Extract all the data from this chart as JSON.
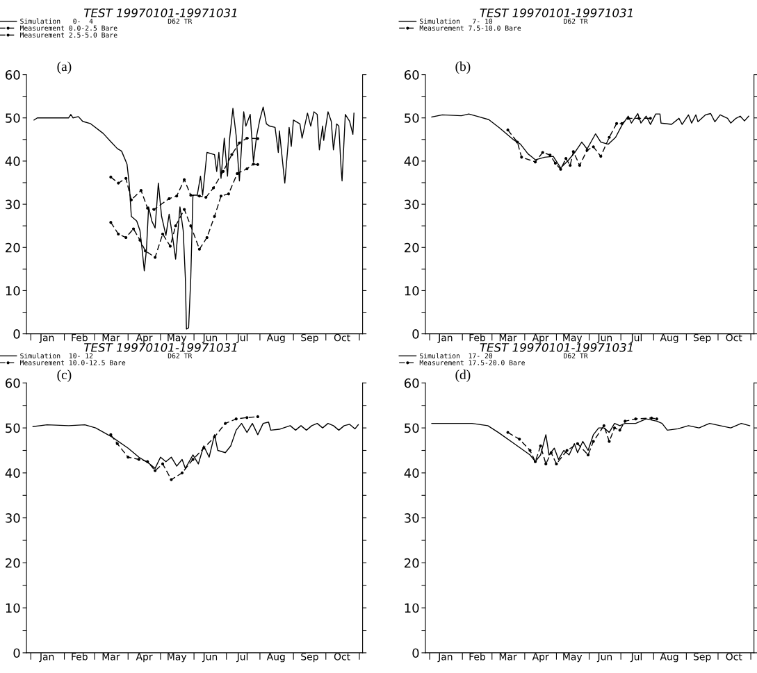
{
  "chart_data": [
    {
      "type": "line",
      "title": "TEST 19970101-19971031",
      "annotations": [
        "(a)",
        "D62 TR"
      ],
      "legend": "top left",
      "grid": false,
      "xlim": [
        "1996-12-28",
        "1997-11-04"
      ],
      "ylim": [
        0,
        60
      ],
      "yticks": [
        0,
        {
          "value": 5,
          "label": null
        },
        10,
        {
          "value": 15,
          "label": null
        },
        20,
        {
          "value": 25,
          "label": null
        },
        30,
        {
          "value": 35,
          "label": null
        },
        40,
        {
          "value": 45,
          "label": null
        },
        50,
        {
          "value": 55,
          "label": null
        },
        60
      ],
      "xticks": [
        {
          "value": "1997-01-01",
          "label": null
        },
        {
          "value": "1997-01-16",
          "label": "Jan"
        },
        {
          "value": "1997-02-01",
          "label": null
        },
        {
          "value": "1997-02-15",
          "label": "Feb"
        },
        {
          "value": "1997-03-01",
          "label": null
        },
        {
          "value": "1997-03-16",
          "label": "Mar"
        },
        {
          "value": "1997-04-01",
          "label": null
        },
        {
          "value": "1997-04-16",
          "label": "Apr"
        },
        {
          "value": "1997-05-01",
          "label": null
        },
        {
          "value": "1997-05-16",
          "label": "May"
        },
        {
          "value": "1997-06-01",
          "label": null
        },
        {
          "value": "1997-06-16",
          "label": "Jun"
        },
        {
          "value": "1997-07-01",
          "label": null
        },
        {
          "value": "1997-07-16",
          "label": "Jul"
        },
        {
          "value": "1997-08-01",
          "label": null
        },
        {
          "value": "1997-08-16",
          "label": "Aug"
        },
        {
          "value": "1997-09-01",
          "label": null
        },
        {
          "value": "1997-09-16",
          "label": "Sep"
        },
        {
          "value": "1997-10-01",
          "label": null
        },
        {
          "value": "1997-10-16",
          "label": "Oct"
        },
        {
          "value": "1997-11-01",
          "label": null
        }
      ],
      "series": [
        {
          "name": "Simulation   0-  4",
          "color": "#000000",
          "line_style": "solid",
          "marker": "none",
          "x": [
            "1997-01-04",
            "1997-01-07",
            "1997-02-05",
            "1997-02-07",
            "1997-02-09",
            "1997-02-14",
            "1997-02-18",
            "1997-02-25",
            "1997-03-09",
            "1997-03-16",
            "1997-03-22",
            "1997-03-26",
            "1997-03-31",
            "1997-04-02",
            "1997-04-04",
            "1997-04-09",
            "1997-04-12",
            "1997-04-14",
            "1997-04-16",
            "1997-04-18",
            "1997-04-20",
            "1997-04-23",
            "1997-04-26",
            "1997-04-29",
            "1997-05-02",
            "1997-05-06",
            "1997-05-09",
            "1997-05-12",
            "1997-05-15",
            "1997-05-19",
            "1997-05-22",
            "1997-05-24",
            "1997-05-25",
            "1997-05-27",
            "1997-05-29",
            "1997-05-31",
            "1997-06-04",
            "1997-06-07",
            "1997-06-09",
            "1997-06-13",
            "1997-06-20",
            "1997-06-22",
            "1997-06-24",
            "1997-06-26",
            "1997-06-29",
            "1997-07-02",
            "1997-07-04",
            "1997-07-07",
            "1997-07-10",
            "1997-07-13",
            "1997-07-17",
            "1997-07-19",
            "1997-07-23",
            "1997-07-26",
            "1997-07-29",
            "1997-08-01",
            "1997-08-04",
            "1997-08-07",
            "1997-08-10",
            "1997-08-15",
            "1997-08-18",
            "1997-08-19",
            "1997-08-24",
            "1997-08-27",
            "1997-08-28",
            "1997-08-30",
            "1997-09-01",
            "1997-09-07",
            "1997-09-09",
            "1997-09-14",
            "1997-09-17",
            "1997-09-20",
            "1997-09-23",
            "1997-09-25",
            "1997-09-28",
            "1997-09-29",
            "1997-10-03",
            "1997-10-06",
            "1997-10-08",
            "1997-10-11",
            "1997-10-13",
            "1997-10-15",
            "1997-10-16",
            "1997-10-19",
            "1997-10-23",
            "1997-10-26",
            "1997-10-27"
          ],
          "values": [
            49.5,
            50,
            50,
            50.8,
            50,
            50.3,
            49.2,
            48.7,
            46.4,
            44.5,
            42.9,
            42.3,
            39.3,
            34.9,
            27.2,
            26.1,
            23.9,
            19.5,
            14.6,
            19.5,
            29.4,
            26.1,
            24.5,
            34.9,
            27.2,
            22.8,
            27.7,
            22.8,
            17.3,
            29.4,
            23.9,
            12.9,
            1.1,
            1.4,
            12.9,
            32.1,
            32.1,
            36.5,
            32.1,
            42,
            41.5,
            37.6,
            42,
            36,
            45.3,
            36.5,
            45.3,
            52.2,
            45.9,
            35.4,
            51.4,
            48.1,
            50.8,
            39.8,
            45.9,
            49.7,
            52.5,
            48.6,
            48.1,
            47.8,
            42,
            47,
            34.9,
            43.7,
            47.8,
            43.4,
            49.5,
            48.6,
            45.3,
            51.1,
            48.1,
            51.4,
            50.8,
            42.6,
            48.1,
            44.8,
            51.4,
            49.2,
            42.6,
            48.6,
            48.1,
            38.7,
            35.4,
            50.8,
            49.2,
            46.2,
            51.1
          ]
        },
        {
          "name": "Measurement 0.0-2.5 Bare",
          "color": "#000000",
          "line_style": "dashed",
          "marker": "circle",
          "x": [
            "1997-03-16",
            "1997-03-23",
            "1997-03-30",
            "1997-04-06",
            "1997-04-12",
            "1997-04-17",
            "1997-04-26",
            "1997-05-03",
            "1997-05-10",
            "1997-05-15",
            "1997-05-23",
            "1997-05-29",
            "1997-06-06",
            "1997-06-13",
            "1997-06-20",
            "1997-06-26",
            "1997-07-03",
            "1997-07-11",
            "1997-07-20",
            "1997-07-26",
            "1997-07-30"
          ],
          "values": [
            25.8,
            23.1,
            22.3,
            24.3,
            21.7,
            19.2,
            17.7,
            23.1,
            20.3,
            25,
            28.8,
            25,
            19.6,
            22.3,
            27.2,
            31.9,
            32.4,
            37.1,
            38.2,
            39.3,
            39.2
          ]
        },
        {
          "name": "Measurement 2.5-5.0 Bare",
          "color": "#000000",
          "line_style": "dashed",
          "marker": "circle",
          "x": [
            "1997-03-16",
            "1997-03-23",
            "1997-03-30",
            "1997-04-04",
            "1997-04-13",
            "1997-04-19",
            "1997-04-25",
            "1997-05-09",
            "1997-05-16",
            "1997-05-23",
            "1997-05-29",
            "1997-06-06",
            "1997-06-12",
            "1997-06-19",
            "1997-06-28",
            "1997-07-06",
            "1997-07-13",
            "1997-07-20",
            "1997-07-30"
          ],
          "values": [
            36.3,
            34.9,
            36,
            31,
            33.2,
            29.1,
            28.8,
            31.3,
            31.9,
            35.7,
            32.1,
            31.9,
            31.6,
            33.8,
            37.6,
            41.5,
            44.2,
            45.3,
            45.2
          ]
        }
      ]
    },
    {
      "type": "line",
      "title": "TEST 19970101-19971031",
      "annotations": [
        "(b)",
        "D62 TR"
      ],
      "legend": "top left",
      "grid": false,
      "xlim": [
        "1996-12-28",
        "1997-11-04"
      ],
      "ylim": [
        0,
        60
      ],
      "yticks": [
        0,
        {
          "value": 5,
          "label": null
        },
        10,
        {
          "value": 15,
          "label": null
        },
        20,
        {
          "value": 25,
          "label": null
        },
        30,
        {
          "value": 35,
          "label": null
        },
        40,
        {
          "value": 45,
          "label": null
        },
        50,
        {
          "value": 55,
          "label": null
        },
        60
      ],
      "xticks": [
        {
          "value": "1997-01-01",
          "label": null
        },
        {
          "value": "1997-01-16",
          "label": "Jan"
        },
        {
          "value": "1997-02-01",
          "label": null
        },
        {
          "value": "1997-02-15",
          "label": "Feb"
        },
        {
          "value": "1997-03-01",
          "label": null
        },
        {
          "value": "1997-03-16",
          "label": "Mar"
        },
        {
          "value": "1997-04-01",
          "label": null
        },
        {
          "value": "1997-04-16",
          "label": "Apr"
        },
        {
          "value": "1997-05-01",
          "label": null
        },
        {
          "value": "1997-05-16",
          "label": "May"
        },
        {
          "value": "1997-06-01",
          "label": null
        },
        {
          "value": "1997-06-16",
          "label": "Jun"
        },
        {
          "value": "1997-07-01",
          "label": null
        },
        {
          "value": "1997-07-16",
          "label": "Jul"
        },
        {
          "value": "1997-08-01",
          "label": null
        },
        {
          "value": "1997-08-16",
          "label": "Aug"
        },
        {
          "value": "1997-09-01",
          "label": null
        },
        {
          "value": "1997-09-16",
          "label": "Sep"
        },
        {
          "value": "1997-10-01",
          "label": null
        },
        {
          "value": "1997-10-16",
          "label": "Oct"
        },
        {
          "value": "1997-11-01",
          "label": null
        }
      ],
      "series": [
        {
          "name": "Simulation   7- 10",
          "color": "#000000",
          "line_style": "solid",
          "marker": "none",
          "x": [
            "1997-01-03",
            "1997-01-13",
            "1997-01-31",
            "1997-02-07",
            "1997-02-16",
            "1997-02-26",
            "1997-03-08",
            "1997-03-21",
            "1997-03-28",
            "1997-04-04",
            "1997-04-11",
            "1997-04-20",
            "1997-04-28",
            "1997-05-05",
            "1997-05-12",
            "1997-05-19",
            "1997-05-25",
            "1997-05-30",
            "1997-06-07",
            "1997-06-12",
            "1997-06-19",
            "1997-06-26",
            "1997-07-02",
            "1997-07-08",
            "1997-07-11",
            "1997-07-17",
            "1997-07-20",
            "1997-07-25",
            "1997-07-29",
            "1997-08-03",
            "1997-08-07",
            "1997-08-08",
            "1997-08-18",
            "1997-08-25",
            "1997-08-28",
            "1997-09-03",
            "1997-09-06",
            "1997-09-10",
            "1997-09-12",
            "1997-09-19",
            "1997-09-24",
            "1997-09-28",
            "1997-10-03",
            "1997-10-10",
            "1997-10-13",
            "1997-10-18",
            "1997-10-22",
            "1997-10-26",
            "1997-10-30"
          ],
          "values": [
            50.2,
            50.7,
            50.5,
            50.9,
            50.3,
            49.6,
            47.7,
            45,
            43.9,
            41.7,
            40.3,
            40.9,
            41.1,
            38.4,
            40.1,
            42.2,
            44.4,
            42.8,
            46.3,
            44.4,
            43.9,
            45.5,
            48.3,
            50.4,
            48.8,
            51,
            48.8,
            50.4,
            48.5,
            50.9,
            50.9,
            48.8,
            48.5,
            49.9,
            48.5,
            50.7,
            48.8,
            50.7,
            49.1,
            50.7,
            51,
            49.1,
            50.7,
            49.9,
            48.8,
            49.9,
            50.4,
            49.3,
            50.4
          ]
        },
        {
          "name": "Measurement 7.5-10.0 Bare",
          "color": "#000000",
          "line_style": "dashed",
          "marker": "circle",
          "x": [
            "1997-03-16",
            "1997-03-25",
            "1997-03-29",
            "1997-04-11",
            "1997-04-18",
            "1997-04-25",
            "1997-04-30",
            "1997-05-05",
            "1997-05-10",
            "1997-05-14",
            "1997-05-17",
            "1997-05-23",
            "1997-05-30",
            "1997-06-05",
            "1997-06-12",
            "1997-06-20",
            "1997-06-27",
            "1997-07-02",
            "1997-07-08",
            "1997-07-18",
            "1997-07-29"
          ],
          "values": [
            47.2,
            44.4,
            40.9,
            39.8,
            42,
            41.4,
            39.5,
            38.1,
            40.6,
            39,
            42.2,
            39,
            42.5,
            43.3,
            41.1,
            45.5,
            48.7,
            48.7,
            49.9,
            49.9,
            49.9
          ]
        }
      ]
    },
    {
      "type": "line",
      "title": "TEST 19970101-19971031",
      "annotations": [
        "(c)",
        "D62 TR"
      ],
      "legend": "top left",
      "grid": false,
      "xlim": [
        "1996-12-28",
        "1997-11-04"
      ],
      "ylim": [
        0,
        60
      ],
      "yticks": [
        0,
        {
          "value": 5,
          "label": null
        },
        10,
        {
          "value": 15,
          "label": null
        },
        20,
        {
          "value": 25,
          "label": null
        },
        30,
        {
          "value": 35,
          "label": null
        },
        40,
        {
          "value": 45,
          "label": null
        },
        50,
        {
          "value": 55,
          "label": null
        },
        60
      ],
      "xticks": [
        {
          "value": "1997-01-01",
          "label": null
        },
        {
          "value": "1997-01-16",
          "label": "Jan"
        },
        {
          "value": "1997-02-01",
          "label": null
        },
        {
          "value": "1997-02-15",
          "label": "Feb"
        },
        {
          "value": "1997-03-01",
          "label": null
        },
        {
          "value": "1997-03-16",
          "label": "Mar"
        },
        {
          "value": "1997-04-01",
          "label": null
        },
        {
          "value": "1997-04-16",
          "label": "Apr"
        },
        {
          "value": "1997-05-01",
          "label": null
        },
        {
          "value": "1997-05-16",
          "label": "May"
        },
        {
          "value": "1997-06-01",
          "label": null
        },
        {
          "value": "1997-06-16",
          "label": "Jun"
        },
        {
          "value": "1997-07-01",
          "label": null
        },
        {
          "value": "1997-07-16",
          "label": "Jul"
        },
        {
          "value": "1997-08-01",
          "label": null
        },
        {
          "value": "1997-08-16",
          "label": "Aug"
        },
        {
          "value": "1997-09-01",
          "label": null
        },
        {
          "value": "1997-09-16",
          "label": "Sep"
        },
        {
          "value": "1997-10-01",
          "label": null
        },
        {
          "value": "1997-10-16",
          "label": "Oct"
        },
        {
          "value": "1997-11-01",
          "label": null
        }
      ],
      "series": [
        {
          "name": "Simulation  10- 12",
          "color": "#000000",
          "line_style": "solid",
          "marker": "none",
          "x": [
            "1997-01-03",
            "1997-01-16",
            "1997-02-05",
            "1997-02-20",
            "1997-03-02",
            "1997-03-17",
            "1997-04-01",
            "1997-04-11",
            "1997-04-21",
            "1997-04-26",
            "1997-05-01",
            "1997-05-06",
            "1997-05-11",
            "1997-05-16",
            "1997-05-21",
            "1997-05-24",
            "1997-05-31",
            "1997-06-05",
            "1997-06-10",
            "1997-06-15",
            "1997-06-20",
            "1997-06-23",
            "1997-06-30",
            "1997-07-05",
            "1997-07-10",
            "1997-07-15",
            "1997-07-20",
            "1997-07-25",
            "1997-07-30",
            "1997-08-04",
            "1997-08-09",
            "1997-08-11",
            "1997-08-19",
            "1997-08-29",
            "1997-09-03",
            "1997-09-08",
            "1997-09-13",
            "1997-09-18",
            "1997-09-23",
            "1997-09-28",
            "1997-10-03",
            "1997-10-08",
            "1997-10-13",
            "1997-10-18",
            "1997-10-23",
            "1997-10-28",
            "1997-10-31"
          ],
          "values": [
            50.3,
            50.7,
            50.5,
            50.7,
            50,
            48,
            45.5,
            43.5,
            42,
            41,
            43.5,
            42.5,
            43.5,
            41.5,
            43,
            41,
            44,
            42,
            46,
            43.5,
            48.5,
            45,
            44.5,
            46,
            49.5,
            51,
            49,
            51,
            48.5,
            51,
            51.3,
            49.5,
            49.7,
            50.5,
            49.5,
            50.5,
            49.5,
            50.5,
            51,
            50,
            51,
            50.5,
            49.5,
            50.5,
            50.8,
            49.8,
            50.7
          ]
        },
        {
          "name": "Measurement 10.0-12.5 Bare",
          "color": "#000000",
          "line_style": "dashed",
          "marker": "circle",
          "x": [
            "1997-03-16",
            "1997-03-22",
            "1997-04-01",
            "1997-04-11",
            "1997-04-19",
            "1997-04-26",
            "1997-05-03",
            "1997-05-11",
            "1997-05-21",
            "1997-05-31",
            "1997-06-10",
            "1997-06-20",
            "1997-06-30",
            "1997-07-10",
            "1997-07-20",
            "1997-07-30"
          ],
          "values": [
            48.5,
            46.5,
            43.5,
            43,
            42.5,
            40.5,
            42,
            38.5,
            40,
            43,
            45.5,
            48,
            51,
            52,
            52.3,
            52.5
          ]
        }
      ]
    },
    {
      "type": "line",
      "title": "TEST 19970101-19971031",
      "annotations": [
        "(d)",
        "D62 TR"
      ],
      "legend": "top left",
      "grid": false,
      "xlim": [
        "1996-12-28",
        "1997-11-04"
      ],
      "ylim": [
        0,
        60
      ],
      "yticks": [
        0,
        {
          "value": 5,
          "label": null
        },
        10,
        {
          "value": 15,
          "label": null
        },
        20,
        {
          "value": 25,
          "label": null
        },
        30,
        {
          "value": 35,
          "label": null
        },
        40,
        {
          "value": 45,
          "label": null
        },
        50,
        {
          "value": 55,
          "label": null
        },
        60
      ],
      "xticks": [
        {
          "value": "1997-01-01",
          "label": null
        },
        {
          "value": "1997-01-16",
          "label": "Jan"
        },
        {
          "value": "1997-02-01",
          "label": null
        },
        {
          "value": "1997-02-15",
          "label": "Feb"
        },
        {
          "value": "1997-03-01",
          "label": null
        },
        {
          "value": "1997-03-16",
          "label": "Mar"
        },
        {
          "value": "1997-04-01",
          "label": null
        },
        {
          "value": "1997-04-16",
          "label": "Apr"
        },
        {
          "value": "1997-05-01",
          "label": null
        },
        {
          "value": "1997-05-16",
          "label": "May"
        },
        {
          "value": "1997-06-01",
          "label": null
        },
        {
          "value": "1997-06-16",
          "label": "Jun"
        },
        {
          "value": "1997-07-01",
          "label": null
        },
        {
          "value": "1997-07-16",
          "label": "Jul"
        },
        {
          "value": "1997-08-01",
          "label": null
        },
        {
          "value": "1997-08-16",
          "label": "Aug"
        },
        {
          "value": "1997-09-01",
          "label": null
        },
        {
          "value": "1997-09-16",
          "label": "Sep"
        },
        {
          "value": "1997-10-01",
          "label": null
        },
        {
          "value": "1997-10-16",
          "label": "Oct"
        },
        {
          "value": "1997-11-01",
          "label": null
        }
      ],
      "series": [
        {
          "name": "Simulation  17- 20",
          "color": "#000000",
          "line_style": "solid",
          "marker": "none",
          "x": [
            "1997-01-03",
            "1997-02-10",
            "1997-02-25",
            "1997-03-07",
            "1997-03-22",
            "1997-04-06",
            "1997-04-11",
            "1997-04-16",
            "1997-04-21",
            "1997-04-24",
            "1997-04-29",
            "1997-05-03",
            "1997-05-08",
            "1997-05-13",
            "1997-05-18",
            "1997-05-21",
            "1997-05-26",
            "1997-05-31",
            "1997-06-05",
            "1997-06-10",
            "1997-06-15",
            "1997-06-20",
            "1997-06-25",
            "1997-06-30",
            "1997-07-05",
            "1997-07-15",
            "1997-07-25",
            "1997-08-04",
            "1997-08-09",
            "1997-08-14",
            "1997-08-24",
            "1997-09-03",
            "1997-09-13",
            "1997-09-23",
            "1997-10-03",
            "1997-10-13",
            "1997-10-23",
            "1997-10-31"
          ],
          "values": [
            51,
            51,
            50.5,
            49,
            46.5,
            44,
            42.5,
            44,
            48.5,
            44,
            45.5,
            43,
            45,
            44,
            46.5,
            44.5,
            47,
            45,
            48.5,
            50,
            50,
            49,
            51,
            50.5,
            51,
            51,
            52,
            51.5,
            51,
            49.5,
            49.8,
            50.5,
            50,
            51,
            50.5,
            50,
            51,
            50.5
          ]
        },
        {
          "name": "Measurement 17.5-20.0 Bare",
          "color": "#000000",
          "line_style": "dashed",
          "marker": "circle",
          "x": [
            "1997-03-16",
            "1997-03-27",
            "1997-04-06",
            "1997-04-11",
            "1997-04-16",
            "1997-04-21",
            "1997-04-26",
            "1997-05-01",
            "1997-05-11",
            "1997-05-21",
            "1997-05-31",
            "1997-06-05",
            "1997-06-15",
            "1997-06-20",
            "1997-06-25",
            "1997-06-30",
            "1997-07-05",
            "1997-07-15",
            "1997-07-30",
            "1997-08-04"
          ],
          "values": [
            49,
            47.5,
            45,
            42.5,
            46,
            42,
            44.5,
            42,
            45,
            46.5,
            44,
            47,
            50.5,
            47,
            50,
            49.5,
            51.5,
            52,
            52.2,
            52
          ]
        }
      ]
    }
  ]
}
